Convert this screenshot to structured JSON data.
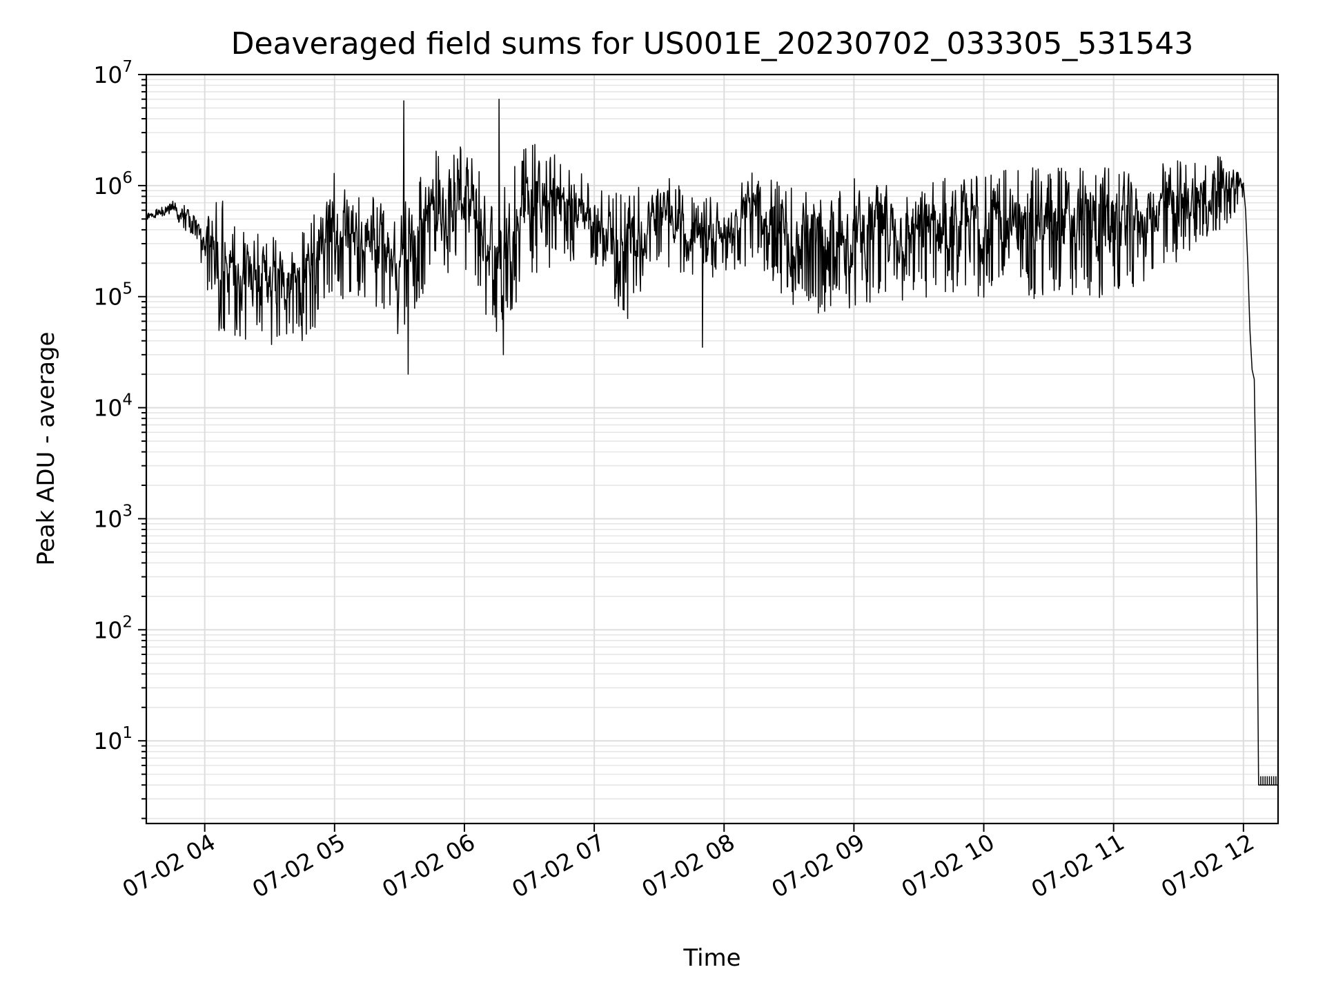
{
  "chart_data": {
    "type": "line",
    "title": "Deaveraged field sums for US001E_20230702_033305_531543",
    "xlabel": "Time",
    "ylabel": "Peak ADU - average",
    "yscale": "log",
    "grid": true,
    "x_range": [
      "2023-07-02 03:33",
      "2023-07-02 12:16"
    ],
    "y_range": [
      1.8,
      10000000
    ],
    "y_ticks": [
      {
        "base": "10",
        "exp": "1",
        "value": 10
      },
      {
        "base": "10",
        "exp": "2",
        "value": 100
      },
      {
        "base": "10",
        "exp": "3",
        "value": 1000
      },
      {
        "base": "10",
        "exp": "4",
        "value": 10000
      },
      {
        "base": "10",
        "exp": "5",
        "value": 100000
      },
      {
        "base": "10",
        "exp": "6",
        "value": 1000000
      },
      {
        "base": "10",
        "exp": "7",
        "value": 10000000
      }
    ],
    "x_ticks": [
      {
        "label": "07-02 04",
        "time": "2023-07-02 04:00"
      },
      {
        "label": "07-02 05",
        "time": "2023-07-02 05:00"
      },
      {
        "label": "07-02 06",
        "time": "2023-07-02 06:00"
      },
      {
        "label": "07-02 07",
        "time": "2023-07-02 07:00"
      },
      {
        "label": "07-02 08",
        "time": "2023-07-02 08:00"
      },
      {
        "label": "07-02 09",
        "time": "2023-07-02 09:00"
      },
      {
        "label": "07-02 10",
        "time": "2023-07-02 10:00"
      },
      {
        "label": "07-02 11",
        "time": "2023-07-02 11:00"
      },
      {
        "label": "07-02 12",
        "time": "2023-07-02 12:00"
      }
    ],
    "series": [
      {
        "color": "#000000",
        "envelope": [
          {
            "time": "2023-07-02 03:33",
            "low": 400000,
            "high": 600000
          },
          {
            "time": "2023-07-02 03:45",
            "low": 450000,
            "high": 750000
          },
          {
            "time": "2023-07-02 03:55",
            "low": 350000,
            "high": 650000
          },
          {
            "time": "2023-07-02 04:00",
            "low": 150000,
            "high": 500000
          },
          {
            "time": "2023-07-02 04:05",
            "low": 50000,
            "high": 1000000
          },
          {
            "time": "2023-07-02 04:15",
            "low": 40000,
            "high": 400000
          },
          {
            "time": "2023-07-02 04:30",
            "low": 35000,
            "high": 350000
          },
          {
            "time": "2023-07-02 04:45",
            "low": 40000,
            "high": 400000
          },
          {
            "time": "2023-07-02 05:00",
            "low": 80000,
            "high": 1400000
          },
          {
            "time": "2023-07-02 05:15",
            "low": 100000,
            "high": 900000
          },
          {
            "time": "2023-07-02 05:30",
            "low": 40000,
            "high": 700000
          },
          {
            "time": "2023-07-02 05:45",
            "low": 150000,
            "high": 2000000
          },
          {
            "time": "2023-07-02 06:00",
            "low": 150000,
            "high": 2400000
          },
          {
            "time": "2023-07-02 06:15",
            "low": 40000,
            "high": 1000000
          },
          {
            "time": "2023-07-02 06:30",
            "low": 150000,
            "high": 2500000
          },
          {
            "time": "2023-07-02 06:45",
            "low": 200000,
            "high": 2000000
          },
          {
            "time": "2023-07-02 07:00",
            "low": 200000,
            "high": 1000000
          },
          {
            "time": "2023-07-02 07:15",
            "low": 60000,
            "high": 800000
          },
          {
            "time": "2023-07-02 07:30",
            "low": 200000,
            "high": 1500000
          },
          {
            "time": "2023-07-02 07:45",
            "low": 150000,
            "high": 800000
          },
          {
            "time": "2023-07-02 08:00",
            "low": 150000,
            "high": 800000
          },
          {
            "time": "2023-07-02 08:15",
            "low": 200000,
            "high": 1500000
          },
          {
            "time": "2023-07-02 08:30",
            "low": 80000,
            "high": 1000000
          },
          {
            "time": "2023-07-02 08:45",
            "low": 70000,
            "high": 800000
          },
          {
            "time": "2023-07-02 09:00",
            "low": 80000,
            "high": 1300000
          },
          {
            "time": "2023-07-02 09:30",
            "low": 90000,
            "high": 1400000
          },
          {
            "time": "2023-07-02 10:00",
            "low": 95000,
            "high": 1400000
          },
          {
            "time": "2023-07-02 10:30",
            "low": 95000,
            "high": 1500000
          },
          {
            "time": "2023-07-02 11:00",
            "low": 95000,
            "high": 1600000
          },
          {
            "time": "2023-07-02 11:30",
            "low": 200000,
            "high": 1700000
          },
          {
            "time": "2023-07-02 11:55",
            "low": 500000,
            "high": 2000000
          },
          {
            "time": "2023-07-02 12:00",
            "low": 800000,
            "high": 1200000
          }
        ],
        "spikes": [
          {
            "time": "2023-07-02 05:32",
            "value": 5800000
          },
          {
            "time": "2023-07-02 05:34",
            "value": 20000
          },
          {
            "time": "2023-07-02 06:16",
            "value": 6000000
          },
          {
            "time": "2023-07-02 06:18",
            "value": 30000
          },
          {
            "time": "2023-07-02 07:50",
            "value": 35000
          }
        ],
        "tail": [
          {
            "time": "2023-07-02 12:00",
            "value": 1000000
          },
          {
            "time": "2023-07-02 12:01",
            "value": 600000
          },
          {
            "time": "2023-07-02 12:02",
            "value": 200000
          },
          {
            "time": "2023-07-02 12:03",
            "value": 50000
          },
          {
            "time": "2023-07-02 12:04",
            "value": 22000
          },
          {
            "time": "2023-07-02 12:05",
            "value": 18000
          },
          {
            "time": "2023-07-02 12:06",
            "value": 1000
          },
          {
            "time": "2023-07-02 12:07",
            "value": 4
          },
          {
            "time": "2023-07-02 12:16",
            "value": 4
          }
        ]
      }
    ]
  }
}
